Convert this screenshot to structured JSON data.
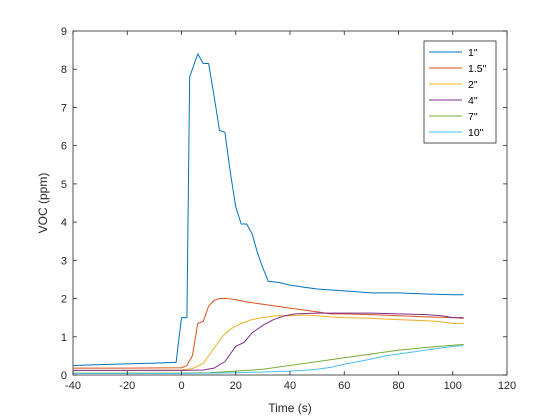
{
  "chart_data": {
    "type": "line",
    "title": "",
    "xlabel": "Time (s)",
    "ylabel": "VOC (ppm)",
    "xlim": [
      -40,
      120
    ],
    "ylim": [
      0,
      9
    ],
    "xticks": [
      -40,
      -20,
      0,
      20,
      40,
      60,
      80,
      100,
      120
    ],
    "yticks": [
      0,
      1,
      2,
      3,
      4,
      5,
      6,
      7,
      8,
      9
    ],
    "xtick_labels": [
      "-40",
      "-20",
      "0",
      "20",
      "40",
      "60",
      "80",
      "100",
      "120"
    ],
    "ytick_labels": [
      "0",
      "1",
      "2",
      "3",
      "4",
      "5",
      "6",
      "7",
      "8",
      "9"
    ],
    "grid": false,
    "legend_position": "top-right",
    "series": [
      {
        "name": "1\"",
        "color": "#0072BD",
        "points": [
          [
            -40,
            0.25
          ],
          [
            -30,
            0.27
          ],
          [
            -20,
            0.29
          ],
          [
            -10,
            0.31
          ],
          [
            -2,
            0.33
          ],
          [
            0,
            1.5
          ],
          [
            2,
            1.5
          ],
          [
            3,
            7.8
          ],
          [
            6,
            8.4
          ],
          [
            8,
            8.15
          ],
          [
            10,
            8.15
          ],
          [
            12,
            7.3
          ],
          [
            14,
            6.4
          ],
          [
            16,
            6.35
          ],
          [
            18,
            5.3
          ],
          [
            20,
            4.4
          ],
          [
            22,
            3.95
          ],
          [
            24,
            3.95
          ],
          [
            26,
            3.7
          ],
          [
            28,
            3.2
          ],
          [
            30,
            2.8
          ],
          [
            32,
            2.45
          ],
          [
            36,
            2.42
          ],
          [
            40,
            2.35
          ],
          [
            45,
            2.3
          ],
          [
            50,
            2.25
          ],
          [
            60,
            2.2
          ],
          [
            70,
            2.15
          ],
          [
            80,
            2.15
          ],
          [
            90,
            2.12
          ],
          [
            100,
            2.1
          ],
          [
            104,
            2.1
          ]
        ]
      },
      {
        "name": "1.5\"",
        "color": "#D95319",
        "points": [
          [
            -40,
            0.18
          ],
          [
            -20,
            0.18
          ],
          [
            0,
            0.19
          ],
          [
            2,
            0.25
          ],
          [
            4,
            0.5
          ],
          [
            6,
            1.35
          ],
          [
            8,
            1.4
          ],
          [
            10,
            1.8
          ],
          [
            12,
            1.95
          ],
          [
            14,
            2.0
          ],
          [
            17,
            2.0
          ],
          [
            20,
            1.97
          ],
          [
            25,
            1.9
          ],
          [
            30,
            1.85
          ],
          [
            35,
            1.8
          ],
          [
            40,
            1.75
          ],
          [
            45,
            1.7
          ],
          [
            50,
            1.65
          ],
          [
            55,
            1.6
          ],
          [
            60,
            1.6
          ],
          [
            70,
            1.58
          ],
          [
            80,
            1.55
          ],
          [
            90,
            1.52
          ],
          [
            100,
            1.5
          ],
          [
            104,
            1.48
          ]
        ]
      },
      {
        "name": "2\"",
        "color": "#EDB120",
        "points": [
          [
            -40,
            0.12
          ],
          [
            -20,
            0.12
          ],
          [
            0,
            0.13
          ],
          [
            4,
            0.17
          ],
          [
            8,
            0.3
          ],
          [
            10,
            0.5
          ],
          [
            12,
            0.7
          ],
          [
            15,
            1.0
          ],
          [
            18,
            1.2
          ],
          [
            22,
            1.35
          ],
          [
            26,
            1.45
          ],
          [
            30,
            1.5
          ],
          [
            35,
            1.55
          ],
          [
            40,
            1.55
          ],
          [
            45,
            1.57
          ],
          [
            50,
            1.55
          ],
          [
            55,
            1.52
          ],
          [
            60,
            1.5
          ],
          [
            70,
            1.48
          ],
          [
            80,
            1.45
          ],
          [
            90,
            1.42
          ],
          [
            95,
            1.4
          ],
          [
            100,
            1.35
          ],
          [
            104,
            1.35
          ]
        ]
      },
      {
        "name": "4\"",
        "color": "#7E2F8E",
        "points": [
          [
            -40,
            0.12
          ],
          [
            -20,
            0.12
          ],
          [
            0,
            0.12
          ],
          [
            8,
            0.13
          ],
          [
            12,
            0.18
          ],
          [
            16,
            0.35
          ],
          [
            18,
            0.55
          ],
          [
            20,
            0.75
          ],
          [
            23,
            0.85
          ],
          [
            26,
            1.1
          ],
          [
            30,
            1.3
          ],
          [
            34,
            1.45
          ],
          [
            38,
            1.55
          ],
          [
            42,
            1.6
          ],
          [
            50,
            1.62
          ],
          [
            60,
            1.62
          ],
          [
            70,
            1.62
          ],
          [
            80,
            1.6
          ],
          [
            90,
            1.58
          ],
          [
            96,
            1.55
          ],
          [
            100,
            1.5
          ],
          [
            104,
            1.5
          ]
        ]
      },
      {
        "name": "7\"",
        "color": "#77AC30",
        "points": [
          [
            -40,
            0.05
          ],
          [
            -20,
            0.05
          ],
          [
            0,
            0.05
          ],
          [
            10,
            0.06
          ],
          [
            20,
            0.1
          ],
          [
            30,
            0.15
          ],
          [
            40,
            0.25
          ],
          [
            50,
            0.35
          ],
          [
            60,
            0.45
          ],
          [
            70,
            0.55
          ],
          [
            80,
            0.65
          ],
          [
            90,
            0.72
          ],
          [
            100,
            0.78
          ],
          [
            104,
            0.8
          ]
        ]
      },
      {
        "name": "10\"",
        "color": "#4DBEEE",
        "points": [
          [
            -40,
            0.04
          ],
          [
            -20,
            0.04
          ],
          [
            0,
            0.04
          ],
          [
            20,
            0.06
          ],
          [
            30,
            0.08
          ],
          [
            40,
            0.1
          ],
          [
            45,
            0.12
          ],
          [
            50,
            0.15
          ],
          [
            55,
            0.2
          ],
          [
            60,
            0.28
          ],
          [
            65,
            0.35
          ],
          [
            70,
            0.42
          ],
          [
            75,
            0.5
          ],
          [
            80,
            0.55
          ],
          [
            85,
            0.6
          ],
          [
            90,
            0.65
          ],
          [
            95,
            0.7
          ],
          [
            100,
            0.75
          ],
          [
            104,
            0.77
          ]
        ]
      }
    ]
  }
}
